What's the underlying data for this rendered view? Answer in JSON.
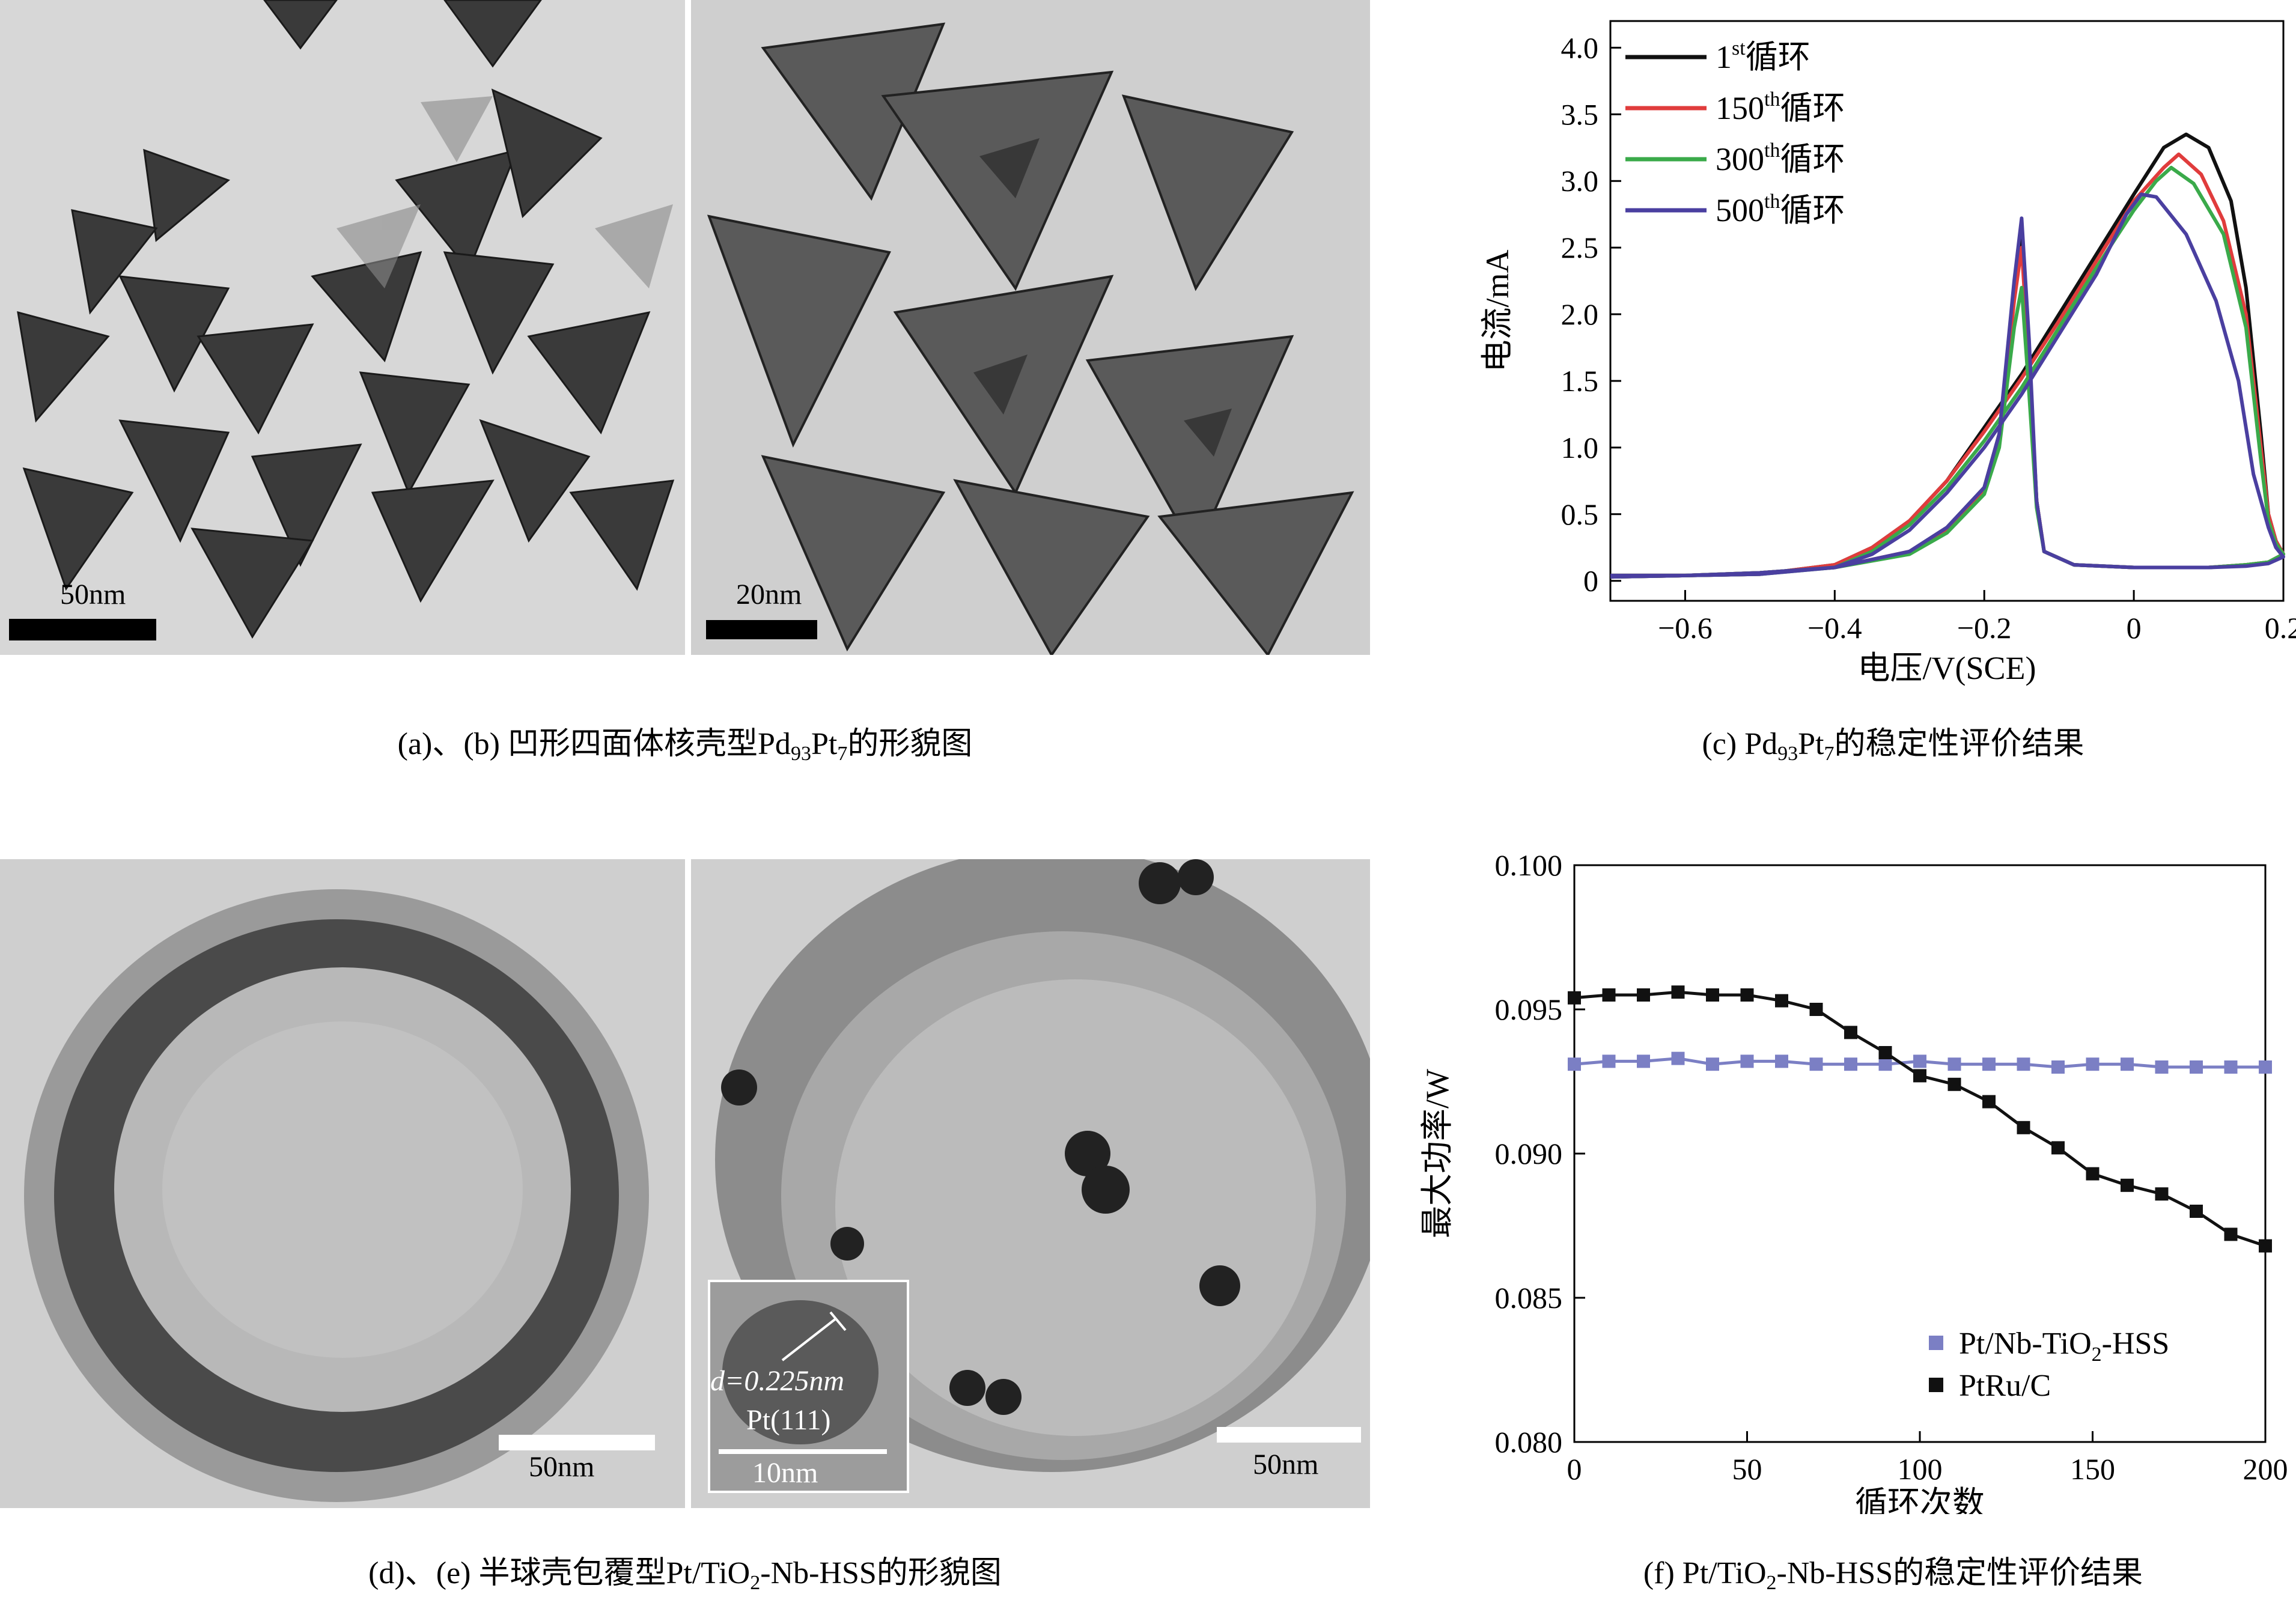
{
  "panels": {
    "a": {
      "scale": "50nm"
    },
    "b": {
      "scale": "20nm"
    },
    "d": {
      "scale": "50nm"
    },
    "e": {
      "scale": "50nm",
      "inset_d": "d=0.225nm",
      "inset_plane": "Pt(111)",
      "inset_scale": "10nm"
    }
  },
  "captions": {
    "ab_prefix": "(a)、(b) 凹形四面体核壳型Pd",
    "ab_sub1": "93",
    "ab_mid": "Pt",
    "ab_sub2": "7",
    "ab_suffix": "的形貌图",
    "c_prefix": "(c) Pd",
    "c_sub1": "93",
    "c_mid": "Pt",
    "c_sub2": "7",
    "c_suffix": "的稳定性评价结果",
    "de_prefix": "(d)、(e) 半球壳包覆型Pt/TiO",
    "de_sub": "2",
    "de_suffix": "-Nb-HSS的形貌图",
    "f_prefix": "(f) Pt/TiO",
    "f_sub": "2",
    "f_suffix": "-Nb-HSS的稳定性评价结果"
  },
  "chart_data": [
    {
      "type": "line",
      "xlabel": "电压/V(SCE)",
      "ylabel": "电流/mA",
      "xlim": [
        -0.7,
        0.2
      ],
      "ylim": [
        -0.15,
        4.2
      ],
      "xticks": [
        -0.6,
        -0.4,
        -0.2,
        0,
        0.2
      ],
      "xtick_labels": [
        "−0.6",
        "−0.4",
        "−0.2",
        "0",
        "0.2"
      ],
      "yticks": [
        0,
        0.5,
        1.0,
        1.5,
        2.0,
        2.5,
        3.0,
        3.5,
        4.0
      ],
      "ytick_labels": [
        "0",
        "0.5",
        "1.0",
        "1.5",
        "2.0",
        "2.5",
        "3.0",
        "3.5",
        "4.0"
      ],
      "legend_position": "top-left",
      "series": [
        {
          "name_sup_pre": "1",
          "name_sup": "st",
          "name_post": "循环",
          "color": "#111111",
          "forward": [
            [
              -0.7,
              0.04
            ],
            [
              -0.6,
              0.04
            ],
            [
              -0.5,
              0.05
            ],
            [
              -0.4,
              0.12
            ],
            [
              -0.35,
              0.25
            ],
            [
              -0.3,
              0.45
            ],
            [
              -0.25,
              0.75
            ],
            [
              -0.2,
              1.15
            ],
            [
              -0.15,
              1.55
            ],
            [
              -0.1,
              2.0
            ],
            [
              -0.05,
              2.45
            ],
            [
              0.0,
              2.9
            ],
            [
              0.04,
              3.25
            ],
            [
              0.07,
              3.35
            ],
            [
              0.1,
              3.25
            ],
            [
              0.13,
              2.85
            ],
            [
              0.15,
              2.2
            ],
            [
              0.17,
              1.1
            ],
            [
              0.18,
              0.5
            ],
            [
              0.19,
              0.3
            ],
            [
              0.2,
              0.2
            ]
          ],
          "reverse": [
            [
              0.2,
              0.2
            ],
            [
              0.18,
              0.14
            ],
            [
              0.15,
              0.12
            ],
            [
              0.1,
              0.1
            ],
            [
              0.0,
              0.1
            ],
            [
              -0.08,
              0.12
            ],
            [
              -0.12,
              0.22
            ],
            [
              -0.13,
              0.6
            ],
            [
              -0.14,
              1.7
            ],
            [
              -0.15,
              2.6
            ],
            [
              -0.16,
              2.2
            ],
            [
              -0.18,
              1.1
            ],
            [
              -0.2,
              0.7
            ],
            [
              -0.25,
              0.4
            ],
            [
              -0.3,
              0.22
            ],
            [
              -0.4,
              0.1
            ],
            [
              -0.5,
              0.06
            ],
            [
              -0.6,
              0.04
            ],
            [
              -0.7,
              0.03
            ]
          ]
        },
        {
          "name_sup_pre": "150",
          "name_sup": "th",
          "name_post": "循环",
          "color": "#e03c3c",
          "forward": [
            [
              -0.7,
              0.04
            ],
            [
              -0.6,
              0.04
            ],
            [
              -0.5,
              0.05
            ],
            [
              -0.4,
              0.12
            ],
            [
              -0.35,
              0.25
            ],
            [
              -0.3,
              0.45
            ],
            [
              -0.25,
              0.75
            ],
            [
              -0.2,
              1.12
            ],
            [
              -0.15,
              1.52
            ],
            [
              -0.1,
              1.95
            ],
            [
              -0.05,
              2.4
            ],
            [
              0.0,
              2.85
            ],
            [
              0.04,
              3.1
            ],
            [
              0.06,
              3.2
            ],
            [
              0.09,
              3.05
            ],
            [
              0.12,
              2.7
            ],
            [
              0.15,
              2.0
            ],
            [
              0.17,
              1.0
            ],
            [
              0.18,
              0.5
            ],
            [
              0.19,
              0.3
            ],
            [
              0.2,
              0.2
            ]
          ],
          "reverse": [
            [
              0.2,
              0.2
            ],
            [
              0.18,
              0.14
            ],
            [
              0.15,
              0.12
            ],
            [
              0.1,
              0.1
            ],
            [
              0.0,
              0.1
            ],
            [
              -0.08,
              0.12
            ],
            [
              -0.12,
              0.22
            ],
            [
              -0.13,
              0.6
            ],
            [
              -0.14,
              1.6
            ],
            [
              -0.15,
              2.5
            ],
            [
              -0.16,
              2.1
            ],
            [
              -0.18,
              1.05
            ],
            [
              -0.2,
              0.68
            ],
            [
              -0.25,
              0.38
            ],
            [
              -0.3,
              0.22
            ],
            [
              -0.4,
              0.1
            ],
            [
              -0.5,
              0.06
            ],
            [
              -0.6,
              0.04
            ],
            [
              -0.7,
              0.03
            ]
          ]
        },
        {
          "name_sup_pre": "300",
          "name_sup": "th",
          "name_post": "循环",
          "color": "#3aaa4a",
          "forward": [
            [
              -0.7,
              0.04
            ],
            [
              -0.6,
              0.04
            ],
            [
              -0.5,
              0.05
            ],
            [
              -0.4,
              0.1
            ],
            [
              -0.35,
              0.22
            ],
            [
              -0.3,
              0.42
            ],
            [
              -0.25,
              0.7
            ],
            [
              -0.2,
              1.05
            ],
            [
              -0.15,
              1.45
            ],
            [
              -0.1,
              1.9
            ],
            [
              -0.05,
              2.35
            ],
            [
              0.0,
              2.78
            ],
            [
              0.03,
              3.0
            ],
            [
              0.05,
              3.1
            ],
            [
              0.08,
              2.98
            ],
            [
              0.12,
              2.6
            ],
            [
              0.15,
              1.9
            ],
            [
              0.17,
              0.9
            ],
            [
              0.18,
              0.45
            ],
            [
              0.19,
              0.28
            ],
            [
              0.2,
              0.2
            ]
          ],
          "reverse": [
            [
              0.2,
              0.2
            ],
            [
              0.18,
              0.14
            ],
            [
              0.15,
              0.12
            ],
            [
              0.1,
              0.1
            ],
            [
              0.0,
              0.1
            ],
            [
              -0.08,
              0.12
            ],
            [
              -0.12,
              0.22
            ],
            [
              -0.13,
              0.55
            ],
            [
              -0.14,
              1.4
            ],
            [
              -0.15,
              2.2
            ],
            [
              -0.16,
              1.9
            ],
            [
              -0.18,
              1.0
            ],
            [
              -0.2,
              0.65
            ],
            [
              -0.25,
              0.36
            ],
            [
              -0.3,
              0.2
            ],
            [
              -0.4,
              0.1
            ],
            [
              -0.5,
              0.06
            ],
            [
              -0.6,
              0.04
            ],
            [
              -0.7,
              0.03
            ]
          ]
        },
        {
          "name_sup_pre": "500",
          "name_sup": "th",
          "name_post": "循环",
          "color": "#4a3fa0",
          "forward": [
            [
              -0.7,
              0.04
            ],
            [
              -0.6,
              0.04
            ],
            [
              -0.5,
              0.05
            ],
            [
              -0.4,
              0.1
            ],
            [
              -0.35,
              0.2
            ],
            [
              -0.3,
              0.38
            ],
            [
              -0.25,
              0.66
            ],
            [
              -0.2,
              1.0
            ],
            [
              -0.15,
              1.4
            ],
            [
              -0.1,
              1.85
            ],
            [
              -0.05,
              2.3
            ],
            [
              -0.01,
              2.75
            ],
            [
              0.01,
              2.9
            ],
            [
              0.03,
              2.88
            ],
            [
              0.07,
              2.6
            ],
            [
              0.11,
              2.1
            ],
            [
              0.14,
              1.5
            ],
            [
              0.16,
              0.8
            ],
            [
              0.18,
              0.4
            ],
            [
              0.19,
              0.25
            ],
            [
              0.2,
              0.18
            ]
          ],
          "reverse": [
            [
              0.2,
              0.18
            ],
            [
              0.18,
              0.13
            ],
            [
              0.15,
              0.11
            ],
            [
              0.1,
              0.1
            ],
            [
              0.0,
              0.1
            ],
            [
              -0.08,
              0.12
            ],
            [
              -0.12,
              0.22
            ],
            [
              -0.13,
              0.6
            ],
            [
              -0.14,
              1.8
            ],
            [
              -0.15,
              2.72
            ],
            [
              -0.16,
              2.25
            ],
            [
              -0.18,
              1.1
            ],
            [
              -0.2,
              0.7
            ],
            [
              -0.25,
              0.4
            ],
            [
              -0.3,
              0.22
            ],
            [
              -0.4,
              0.1
            ],
            [
              -0.5,
              0.06
            ],
            [
              -0.6,
              0.04
            ],
            [
              -0.7,
              0.03
            ]
          ]
        }
      ]
    },
    {
      "type": "line",
      "xlabel": "循环次数",
      "ylabel": "最大功率/W",
      "xlim": [
        0,
        200
      ],
      "ylim": [
        0.08,
        0.1
      ],
      "xticks": [
        0,
        50,
        100,
        150,
        200
      ],
      "yticks": [
        0.08,
        0.085,
        0.09,
        0.095,
        0.1
      ],
      "ytick_labels": [
        "0.080",
        "0.085",
        "0.090",
        "0.095",
        "0.100"
      ],
      "legend_position": "bottom-right",
      "x": [
        0,
        10,
        20,
        30,
        40,
        50,
        60,
        70,
        80,
        90,
        100,
        110,
        120,
        130,
        140,
        150,
        160,
        170,
        180,
        190,
        200
      ],
      "series": [
        {
          "name_pre": "Pt/Nb-TiO",
          "name_sub": "2",
          "name_post": "-HSS",
          "color": "#7b7fc4",
          "marker": "square",
          "values": [
            0.0931,
            0.0932,
            0.0932,
            0.0933,
            0.0931,
            0.0932,
            0.0932,
            0.0931,
            0.0931,
            0.0931,
            0.0932,
            0.0931,
            0.0931,
            0.0931,
            0.093,
            0.0931,
            0.0931,
            0.093,
            0.093,
            0.093,
            0.093
          ]
        },
        {
          "name_pre": "PtRu/C",
          "name_sub": "",
          "name_post": "",
          "color": "#111111",
          "marker": "square",
          "values": [
            0.0954,
            0.0955,
            0.0955,
            0.0956,
            0.0955,
            0.0955,
            0.0953,
            0.095,
            0.0942,
            0.0935,
            0.0927,
            0.0924,
            0.0918,
            0.0909,
            0.0902,
            0.0893,
            0.0889,
            0.0886,
            0.088,
            0.0872,
            0.0868
          ]
        }
      ]
    }
  ]
}
